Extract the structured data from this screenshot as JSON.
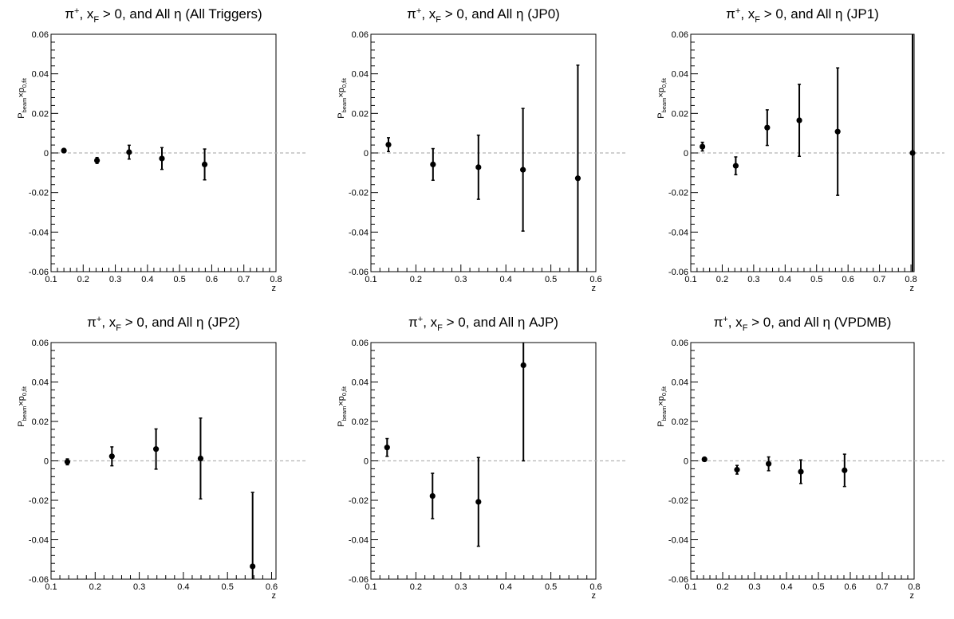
{
  "chart_data": [
    {
      "type": "scatter",
      "title": "π⁺, x_F > 0, and All η (All Triggers)",
      "title_parts": {
        "pre": "π",
        "sup": "+",
        "mid": ", x",
        "sub": "F",
        "post": " > 0, and All η (All Triggers)"
      },
      "xlabel": "z",
      "ylabel": {
        "p1": "P",
        "s1": "beam",
        "m": "×p",
        "s2": "0,fit"
      },
      "xlim": [
        0.1,
        0.8
      ],
      "ylim": [
        -0.06,
        0.06
      ],
      "xticks": [
        0.1,
        0.2,
        0.3,
        0.4,
        0.5,
        0.6,
        0.7,
        0.8
      ],
      "xtick_labels": [
        "0.1",
        "0.2",
        "0.3",
        "0.4",
        "0.5",
        "0.6",
        "0.7",
        "0.8"
      ],
      "yticks": [
        -0.06,
        -0.04,
        -0.02,
        0,
        0.02,
        0.04,
        0.06
      ],
      "ytick_labels": [
        "-0.06",
        "-0.04",
        "-0.02",
        "0",
        "0.02",
        "0.04",
        "0.06"
      ],
      "zero_line": true,
      "grid": false,
      "points": [
        {
          "x": 0.14,
          "y": 0.0012,
          "err": 0.0008
        },
        {
          "x": 0.243,
          "y": -0.0038,
          "err": 0.0015
        },
        {
          "x": 0.343,
          "y": 0.0004,
          "err": 0.0035
        },
        {
          "x": 0.445,
          "y": -0.0028,
          "err": 0.0055
        },
        {
          "x": 0.578,
          "y": -0.0058,
          "err": 0.0078
        }
      ]
    },
    {
      "type": "scatter",
      "title": "π⁺, x_F > 0, and All η (JP0)",
      "title_parts": {
        "pre": "π",
        "sup": "+",
        "mid": ", x",
        "sub": "F",
        "post": " > 0, and All η (JP0)"
      },
      "xlabel": "z",
      "ylabel": {
        "p1": "P",
        "s1": "beam",
        "m": "×p",
        "s2": "0,fit"
      },
      "xlim": [
        0.1,
        0.6
      ],
      "ylim": [
        -0.06,
        0.06
      ],
      "xticks": [
        0.1,
        0.2,
        0.3,
        0.4,
        0.5,
        0.6
      ],
      "xtick_labels": [
        "0.1",
        "0.2",
        "0.3",
        "0.4",
        "0.5",
        "0.6"
      ],
      "yticks": [
        -0.06,
        -0.04,
        -0.02,
        0,
        0.02,
        0.04,
        0.06
      ],
      "ytick_labels": [
        "-0.06",
        "-0.04",
        "-0.02",
        "0",
        "0.02",
        "0.04",
        "0.06"
      ],
      "zero_line": true,
      "grid": false,
      "points": [
        {
          "x": 0.139,
          "y": 0.0042,
          "err": 0.0035
        },
        {
          "x": 0.238,
          "y": -0.0058,
          "err": 0.008
        },
        {
          "x": 0.339,
          "y": -0.0072,
          "err": 0.0162
        },
        {
          "x": 0.438,
          "y": -0.0085,
          "err": 0.031
        },
        {
          "x": 0.56,
          "y": -0.0128,
          "err": 0.0572
        }
      ]
    },
    {
      "type": "scatter",
      "title": "π⁺, x_F > 0, and All η (JP1)",
      "title_parts": {
        "pre": "π",
        "sup": "+",
        "mid": ", x",
        "sub": "F",
        "post": " > 0, and All η (JP1)"
      },
      "xlabel": "z",
      "ylabel": {
        "p1": "P",
        "s1": "beam",
        "m": "×p",
        "s2": "0,fit"
      },
      "xlim": [
        0.1,
        0.81
      ],
      "ylim": [
        -0.06,
        0.06
      ],
      "xticks": [
        0.1,
        0.2,
        0.3,
        0.4,
        0.5,
        0.6,
        0.7,
        0.8
      ],
      "xtick_labels": [
        "0.1",
        "0.2",
        "0.3",
        "0.4",
        "0.5",
        "0.6",
        "0.7",
        "0.8"
      ],
      "yticks": [
        -0.06,
        -0.04,
        -0.02,
        0,
        0.02,
        0.04,
        0.06
      ],
      "ytick_labels": [
        "-0.06",
        "-0.04",
        "-0.02",
        "0",
        "0.02",
        "0.04",
        "0.06"
      ],
      "zero_line": true,
      "grid": false,
      "points": [
        {
          "x": 0.137,
          "y": 0.0032,
          "err": 0.0022
        },
        {
          "x": 0.243,
          "y": -0.0065,
          "err": 0.0045
        },
        {
          "x": 0.343,
          "y": 0.0128,
          "err": 0.009
        },
        {
          "x": 0.445,
          "y": 0.0165,
          "err": 0.0182
        },
        {
          "x": 0.567,
          "y": 0.0108,
          "err": 0.0322
        },
        {
          "x": 0.805,
          "y": 0.0,
          "err": 0.065
        }
      ]
    },
    {
      "type": "scatter",
      "title": "π⁺, x_F > 0, and All η (JP2)",
      "title_parts": {
        "pre": "π",
        "sup": "+",
        "mid": ", x",
        "sub": "F",
        "post": " > 0, and All η (JP2)"
      },
      "xlabel": "z",
      "ylabel": {
        "p1": "P",
        "s1": "beam",
        "m": "×p",
        "s2": "0,fit"
      },
      "xlim": [
        0.1,
        0.61
      ],
      "ylim": [
        -0.06,
        0.06
      ],
      "xticks": [
        0.1,
        0.2,
        0.3,
        0.4,
        0.5,
        0.6
      ],
      "xtick_labels": [
        "0.1",
        "0.2",
        "0.3",
        "0.4",
        "0.5",
        "0.6"
      ],
      "yticks": [
        -0.06,
        -0.04,
        -0.02,
        0,
        0.02,
        0.04,
        0.06
      ],
      "ytick_labels": [
        "-0.06",
        "-0.04",
        "-0.02",
        "0",
        "0.02",
        "0.04",
        "0.06"
      ],
      "zero_line": true,
      "grid": false,
      "points": [
        {
          "x": 0.137,
          "y": -0.0005,
          "err": 0.0015
        },
        {
          "x": 0.238,
          "y": 0.0023,
          "err": 0.0048
        },
        {
          "x": 0.338,
          "y": 0.006,
          "err": 0.0102
        },
        {
          "x": 0.439,
          "y": 0.0012,
          "err": 0.0205
        },
        {
          "x": 0.557,
          "y": -0.0535,
          "err": 0.0375
        }
      ]
    },
    {
      "type": "scatter",
      "title": "π⁺, x_F > 0, and All η AJP)",
      "title_parts": {
        "pre": "π",
        "sup": "+",
        "mid": ", x",
        "sub": "F",
        "post": " > 0, and All η AJP)"
      },
      "xlabel": "z",
      "ylabel": {
        "p1": "P",
        "s1": "beam",
        "m": "×p",
        "s2": "0,fit"
      },
      "xlim": [
        0.1,
        0.6
      ],
      "ylim": [
        -0.06,
        0.06
      ],
      "xticks": [
        0.1,
        0.2,
        0.3,
        0.4,
        0.5,
        0.6
      ],
      "xtick_labels": [
        "0.1",
        "0.2",
        "0.3",
        "0.4",
        "0.5",
        "0.6"
      ],
      "yticks": [
        -0.06,
        -0.04,
        -0.02,
        0,
        0.02,
        0.04,
        0.06
      ],
      "ytick_labels": [
        "-0.06",
        "-0.04",
        "-0.02",
        "0",
        "0.02",
        "0.04",
        "0.06"
      ],
      "zero_line": true,
      "grid": false,
      "points": [
        {
          "x": 0.136,
          "y": 0.0068,
          "err": 0.0045
        },
        {
          "x": 0.237,
          "y": -0.0178,
          "err": 0.0115
        },
        {
          "x": 0.339,
          "y": -0.0208,
          "err": 0.0225
        },
        {
          "x": 0.439,
          "y": 0.0485,
          "err": 0.0485
        }
      ]
    },
    {
      "type": "scatter",
      "title": "π⁺, x_F > 0, and All η (VPDMB)",
      "title_parts": {
        "pre": "π",
        "sup": "+",
        "mid": ", x",
        "sub": "F",
        "post": " > 0, and All η (VPDMB)"
      },
      "xlabel": "z",
      "ylabel": {
        "p1": "P",
        "s1": "beam",
        "m": "×p",
        "s2": "0,fit"
      },
      "xlim": [
        0.1,
        0.8
      ],
      "ylim": [
        -0.06,
        0.06
      ],
      "xticks": [
        0.1,
        0.2,
        0.3,
        0.4,
        0.5,
        0.6,
        0.7,
        0.8
      ],
      "xtick_labels": [
        "0.1",
        "0.2",
        "0.3",
        "0.4",
        "0.5",
        "0.6",
        "0.7",
        "0.8"
      ],
      "yticks": [
        -0.06,
        -0.04,
        -0.02,
        0,
        0.02,
        0.04,
        0.06
      ],
      "ytick_labels": [
        "-0.06",
        "-0.04",
        "-0.02",
        "0",
        "0.02",
        "0.04",
        "0.06"
      ],
      "zero_line": true,
      "grid": false,
      "points": [
        {
          "x": 0.143,
          "y": 0.0008,
          "err": 0.0007
        },
        {
          "x": 0.245,
          "y": -0.0045,
          "err": 0.0022
        },
        {
          "x": 0.344,
          "y": -0.0015,
          "err": 0.0035
        },
        {
          "x": 0.445,
          "y": -0.0055,
          "err": 0.006
        },
        {
          "x": 0.582,
          "y": -0.0048,
          "err": 0.0082
        }
      ]
    }
  ]
}
